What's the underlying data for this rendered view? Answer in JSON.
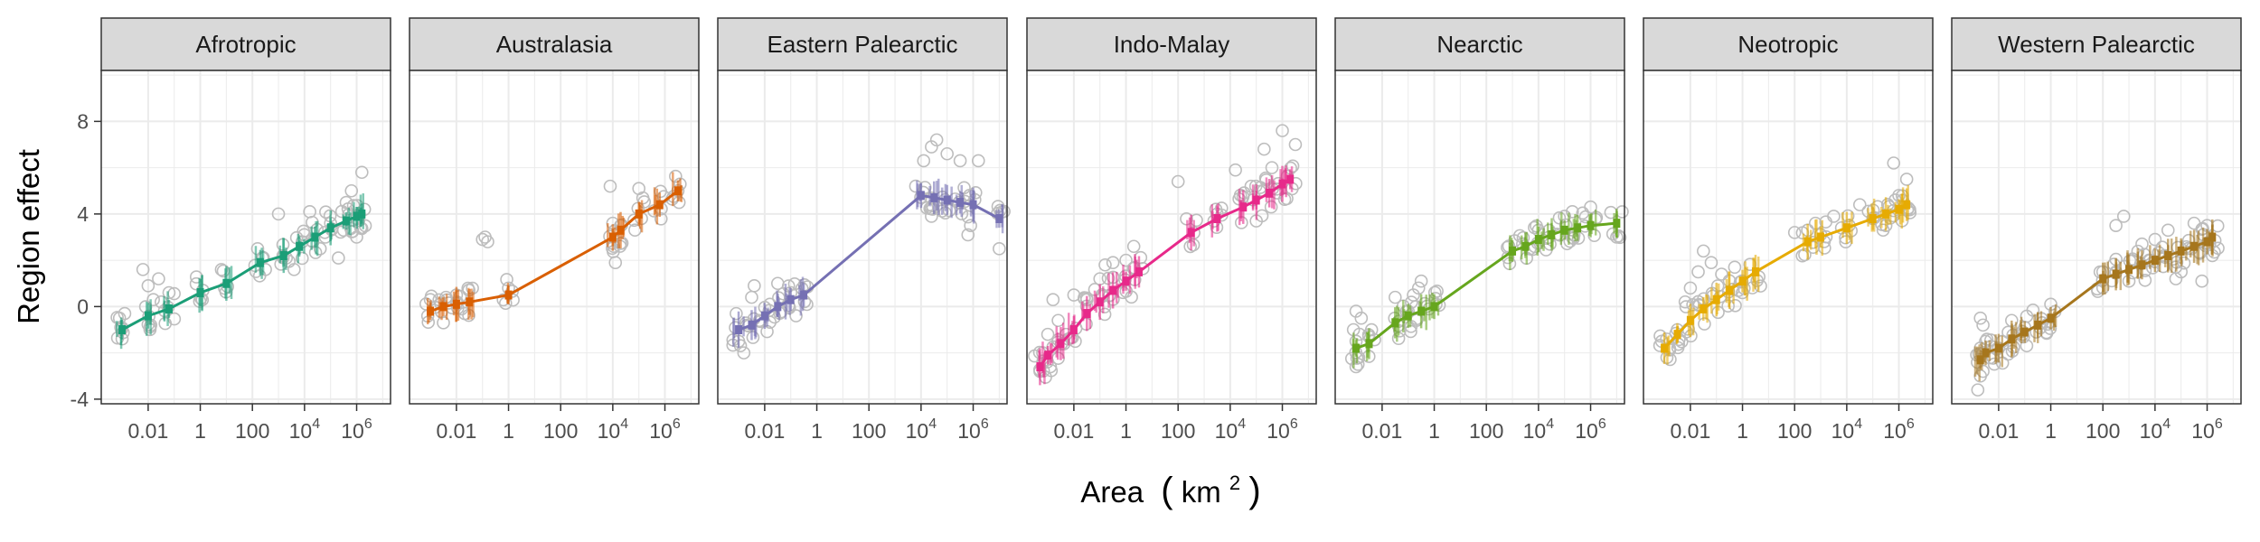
{
  "chart_data": {
    "type": "scatter",
    "xlabel": "Area",
    "xlabel_unit": "km",
    "xlabel_unit_exp": "2",
    "ylabel": "Region effect",
    "x_scale": "log10",
    "xlim_log10": [
      -3.8,
      7.3
    ],
    "ylim": [
      -4.2,
      10.2
    ],
    "y_ticks": [
      -4,
      0,
      4,
      8
    ],
    "y_tick_labels": [
      "-4",
      "0",
      "4",
      "8"
    ],
    "x_ticks_log10": [
      -2,
      0,
      2,
      4,
      6
    ],
    "x_tick_labels": [
      {
        "base": "0.01",
        "exp": ""
      },
      {
        "base": "1",
        "exp": ""
      },
      {
        "base": "100",
        "exp": ""
      },
      {
        "base": "10",
        "exp": "4"
      },
      {
        "base": "10",
        "exp": "6"
      }
    ],
    "grid": true,
    "point_color": "#bdbdbd",
    "panels": [
      {
        "region": "Afrotropic",
        "color": "#1B9E77",
        "fit_log10_area": [
          -3.0,
          -2.0,
          -1.2,
          0.0,
          1.0,
          2.3,
          3.2,
          3.8,
          4.4,
          5.0,
          5.6,
          6.0,
          6.2
        ],
        "fit_effect": [
          -1.0,
          -0.4,
          -0.1,
          0.6,
          1.0,
          1.9,
          2.2,
          2.6,
          3.0,
          3.4,
          3.7,
          3.9,
          4.0
        ],
        "raw_points": [
          [
            -3.1,
            -0.5
          ],
          [
            -3.0,
            -1.4
          ],
          [
            -3.05,
            -0.9
          ],
          [
            -2.9,
            -0.3
          ],
          [
            -2.2,
            1.6
          ],
          [
            -2.0,
            0.9
          ],
          [
            -1.9,
            -0.8
          ],
          [
            -1.8,
            0.3
          ],
          [
            -1.6,
            1.2
          ],
          [
            -1.5,
            0.2
          ],
          [
            -1.2,
            0.6
          ],
          [
            0.1,
            0.7
          ],
          [
            2.2,
            2.5
          ],
          [
            2.5,
            1.6
          ],
          [
            3.0,
            4.0
          ],
          [
            3.3,
            2.1
          ],
          [
            3.6,
            1.6
          ],
          [
            4.2,
            4.1
          ],
          [
            4.6,
            2.5
          ],
          [
            5.0,
            3.6
          ],
          [
            5.3,
            2.1
          ],
          [
            5.6,
            4.5
          ],
          [
            5.8,
            5.0
          ],
          [
            6.0,
            3.0
          ],
          [
            6.2,
            5.8
          ],
          [
            6.3,
            4.2
          ],
          [
            4.8,
            3.0
          ],
          [
            5.5,
            3.3
          ]
        ]
      },
      {
        "region": "Australasia",
        "color": "#D95F02",
        "fit_log10_area": [
          -3.0,
          -2.5,
          -2.0,
          -1.5,
          0.0,
          4.0,
          4.3,
          5.0,
          5.8,
          6.5
        ],
        "fit_effect": [
          -0.2,
          0.0,
          0.1,
          0.2,
          0.5,
          3.0,
          3.3,
          4.0,
          4.4,
          5.0
        ],
        "raw_points": [
          [
            -3.0,
            0.3
          ],
          [
            -2.5,
            -0.7
          ],
          [
            -2.4,
            0.4
          ],
          [
            -2.0,
            0.5
          ],
          [
            -1.8,
            -0.1
          ],
          [
            -1.0,
            2.9
          ],
          [
            -0.8,
            2.8
          ],
          [
            -0.9,
            3.0
          ],
          [
            0.0,
            0.8
          ],
          [
            3.9,
            5.2
          ],
          [
            4.0,
            3.6
          ],
          [
            4.1,
            1.9
          ],
          [
            4.3,
            3.5
          ],
          [
            5.0,
            5.1
          ],
          [
            5.1,
            3.8
          ],
          [
            6.5,
            5.0
          ]
        ]
      },
      {
        "region": "Eastern Palearctic",
        "color": "#7570B3",
        "fit_log10_area": [
          -3.0,
          -2.5,
          -2.0,
          -1.5,
          -1.0,
          -0.5,
          4.0,
          4.5,
          5.0,
          5.5,
          6.0,
          7.0
        ],
        "fit_effect": [
          -1.0,
          -0.8,
          -0.4,
          0.0,
          0.3,
          0.5,
          4.8,
          4.7,
          4.6,
          4.5,
          4.4,
          3.8
        ],
        "raw_points": [
          [
            -3.0,
            -1.5
          ],
          [
            -2.8,
            -2.0
          ],
          [
            -2.5,
            0.4
          ],
          [
            -2.4,
            0.9
          ],
          [
            -2.2,
            -0.6
          ],
          [
            -1.8,
            0.1
          ],
          [
            -1.5,
            1.0
          ],
          [
            -1.0,
            0.6
          ],
          [
            4.1,
            6.3
          ],
          [
            4.4,
            6.9
          ],
          [
            4.6,
            7.2
          ],
          [
            5.0,
            6.6
          ],
          [
            5.5,
            6.3
          ],
          [
            5.9,
            3.5
          ],
          [
            6.2,
            6.3
          ],
          [
            5.8,
            3.1
          ],
          [
            4.4,
            3.9
          ],
          [
            7.0,
            2.5
          ]
        ]
      },
      {
        "region": "Indo-Malay",
        "color": "#E7298A",
        "fit_log10_area": [
          -3.3,
          -3.0,
          -2.5,
          -2.0,
          -1.5,
          -1.0,
          -0.5,
          0.0,
          0.5,
          2.5,
          3.5,
          4.5,
          5.0,
          5.5,
          6.0,
          6.3
        ],
        "fit_effect": [
          -2.6,
          -2.1,
          -1.6,
          -1.0,
          -0.3,
          0.2,
          0.7,
          1.1,
          1.5,
          3.2,
          3.8,
          4.3,
          4.6,
          4.9,
          5.3,
          5.5
        ],
        "raw_points": [
          [
            -3.3,
            -2.8
          ],
          [
            -3.0,
            -1.2
          ],
          [
            -2.9,
            -2.6
          ],
          [
            -2.8,
            0.3
          ],
          [
            -2.6,
            -0.6
          ],
          [
            -2.3,
            -1.2
          ],
          [
            -2.0,
            0.5
          ],
          [
            -1.5,
            0.3
          ],
          [
            -1.0,
            1.2
          ],
          [
            -0.8,
            1.8
          ],
          [
            -0.5,
            1.9
          ],
          [
            0.0,
            2.0
          ],
          [
            0.3,
            2.6
          ],
          [
            2.0,
            5.4
          ],
          [
            3.5,
            4.0
          ],
          [
            4.2,
            5.9
          ],
          [
            5.0,
            3.7
          ],
          [
            5.3,
            6.8
          ],
          [
            6.0,
            7.6
          ],
          [
            6.5,
            7.0
          ],
          [
            4.8,
            5.2
          ],
          [
            5.6,
            6.0
          ]
        ]
      },
      {
        "region": "Nearctic",
        "color": "#66A61E",
        "fit_log10_area": [
          -3.0,
          -2.5,
          -1.5,
          -1.0,
          -0.5,
          0.0,
          3.0,
          3.5,
          4.0,
          4.5,
          5.0,
          5.5,
          6.0,
          7.0
        ],
        "fit_effect": [
          -1.8,
          -1.6,
          -0.7,
          -0.4,
          -0.2,
          0.0,
          2.4,
          2.6,
          2.9,
          3.1,
          3.3,
          3.4,
          3.5,
          3.6
        ],
        "raw_points": [
          [
            -3.0,
            -0.2
          ],
          [
            -3.0,
            -2.6
          ],
          [
            -3.1,
            -1.0
          ],
          [
            -2.9,
            -2.2
          ],
          [
            -3.0,
            -1.5
          ],
          [
            -2.8,
            -0.5
          ],
          [
            -1.5,
            0.4
          ],
          [
            -1.0,
            -0.2
          ],
          [
            -0.8,
            0.5
          ],
          [
            -0.5,
            1.1
          ],
          [
            -0.6,
            0.8
          ],
          [
            -0.2,
            -0.1
          ],
          [
            4.0,
            3.3
          ],
          [
            5.0,
            3.9
          ],
          [
            5.3,
            4.1
          ],
          [
            6.0,
            4.3
          ],
          [
            7.0,
            3.0
          ]
        ]
      },
      {
        "region": "Neotropic",
        "color": "#E6AB02",
        "fit_log10_area": [
          -3.0,
          -2.5,
          -2.0,
          -1.5,
          -1.0,
          -0.5,
          0.0,
          0.5,
          2.5,
          3.0,
          4.0,
          5.0,
          5.5,
          6.0,
          6.3
        ],
        "fit_effect": [
          -1.8,
          -1.2,
          -0.6,
          -0.1,
          0.3,
          0.7,
          1.1,
          1.5,
          2.8,
          3.0,
          3.4,
          3.8,
          4.0,
          4.2,
          4.4
        ],
        "raw_points": [
          [
            -3.1,
            -1.5
          ],
          [
            -2.9,
            -2.2
          ],
          [
            -2.8,
            -1.8
          ],
          [
            -2.5,
            -1.0
          ],
          [
            -2.2,
            0.2
          ],
          [
            -2.0,
            0.8
          ],
          [
            -1.7,
            1.5
          ],
          [
            -1.5,
            2.4
          ],
          [
            -1.2,
            1.9
          ],
          [
            -0.8,
            1.4
          ],
          [
            -0.3,
            1.7
          ],
          [
            2.0,
            3.2
          ],
          [
            2.5,
            3.3
          ],
          [
            2.8,
            3.6
          ],
          [
            3.5,
            3.9
          ],
          [
            3.8,
            3.4
          ],
          [
            4.5,
            4.4
          ],
          [
            5.0,
            3.8
          ],
          [
            5.5,
            3.5
          ],
          [
            6.0,
            4.8
          ],
          [
            6.3,
            5.5
          ],
          [
            5.8,
            6.2
          ]
        ]
      },
      {
        "region": "Western Palearctic",
        "color": "#A6761D",
        "fit_log10_area": [
          -2.7,
          -2.5,
          -2.0,
          -1.5,
          -1.0,
          -0.5,
          0.0,
          2.0,
          2.5,
          3.0,
          3.5,
          4.0,
          4.5,
          5.0,
          5.5,
          6.0,
          6.2
        ],
        "fit_effect": [
          -2.3,
          -2.0,
          -1.8,
          -1.4,
          -1.1,
          -0.8,
          -0.5,
          1.2,
          1.4,
          1.6,
          1.8,
          2.0,
          2.2,
          2.4,
          2.6,
          2.8,
          3.0
        ],
        "raw_points": [
          [
            -2.8,
            -3.6
          ],
          [
            -2.7,
            -0.5
          ],
          [
            -2.6,
            -2.8
          ],
          [
            -2.5,
            -1.5
          ],
          [
            -2.7,
            -3.0
          ],
          [
            -2.6,
            -0.8
          ],
          [
            -2.0,
            -1.8
          ],
          [
            -1.5,
            -0.6
          ],
          [
            -1.0,
            -0.9
          ],
          [
            0.0,
            0.1
          ],
          [
            2.0,
            1.5
          ],
          [
            2.5,
            3.5
          ],
          [
            2.8,
            3.9
          ],
          [
            3.0,
            1.1
          ],
          [
            3.5,
            2.7
          ],
          [
            4.0,
            2.9
          ],
          [
            4.5,
            3.3
          ],
          [
            5.0,
            1.5
          ],
          [
            5.5,
            3.6
          ],
          [
            6.0,
            3.5
          ],
          [
            6.2,
            2.2
          ],
          [
            4.8,
            1.2
          ],
          [
            5.8,
            1.1
          ]
        ]
      }
    ]
  }
}
